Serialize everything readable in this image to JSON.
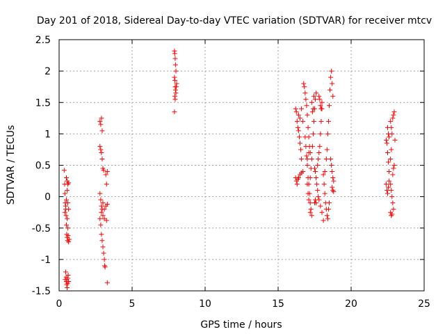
{
  "chart_data": {
    "type": "scatter",
    "title": "Day 201 of 2018, Sidereal Day-to-day VTEC variation (SDTVAR) for receiver mtcv",
    "xlabel": "GPS time / hours",
    "ylabel": "SDTVAR / TECUs",
    "xlim": [
      0,
      25
    ],
    "ylim": [
      -1.5,
      2.5
    ],
    "xticks": [
      0,
      5,
      10,
      15,
      20,
      25
    ],
    "xtick_labels": [
      "0",
      "5",
      "10",
      "15",
      "20",
      "25"
    ],
    "yticks": [
      -1.5,
      -1,
      -0.5,
      0,
      0.5,
      1,
      1.5,
      2,
      2.5
    ],
    "ytick_labels": [
      "-1.5",
      "-1",
      "-0.5",
      "0",
      "0.5",
      "1",
      "1.5",
      "2",
      "2.5"
    ],
    "grid": true,
    "marker": "+",
    "color": "#ff0000",
    "series": [
      {
        "name": "SDTVAR",
        "points": [
          [
            0.35,
            0.42
          ],
          [
            0.38,
            0.2
          ],
          [
            0.4,
            0.05
          ],
          [
            0.42,
            -0.1
          ],
          [
            0.45,
            -0.2
          ],
          [
            0.48,
            -0.3
          ],
          [
            0.5,
            -0.45
          ],
          [
            0.52,
            -0.6
          ],
          [
            0.55,
            -0.65
          ],
          [
            0.58,
            -0.7
          ],
          [
            0.4,
            -0.25
          ],
          [
            0.45,
            -0.15
          ],
          [
            0.5,
            -0.05
          ],
          [
            0.55,
            0.1
          ],
          [
            0.6,
            0.2
          ],
          [
            0.65,
            0.22
          ],
          [
            0.55,
            -0.35
          ],
          [
            0.6,
            -0.5
          ],
          [
            0.62,
            -0.62
          ],
          [
            0.65,
            -0.72
          ],
          [
            0.45,
            -1.2
          ],
          [
            0.48,
            -1.28
          ],
          [
            0.5,
            -1.35
          ],
          [
            0.52,
            -1.4
          ],
          [
            0.55,
            -1.45
          ],
          [
            0.6,
            -1.3
          ],
          [
            0.62,
            -1.25
          ],
          [
            0.58,
            -1.38
          ],
          [
            0.42,
            -1.32
          ],
          [
            0.65,
            -1.35
          ],
          [
            0.5,
            0.3
          ],
          [
            0.55,
            0.25
          ],
          [
            0.6,
            -0.1
          ],
          [
            0.65,
            -0.2
          ],
          [
            0.7,
            -0.68
          ],
          [
            2.8,
            1.2
          ],
          [
            2.85,
            1.15
          ],
          [
            2.9,
            1.25
          ],
          [
            2.95,
            1.05
          ],
          [
            2.8,
            0.8
          ],
          [
            2.85,
            0.75
          ],
          [
            2.9,
            0.7
          ],
          [
            2.95,
            0.6
          ],
          [
            3.0,
            0.45
          ],
          [
            3.05,
            0.42
          ],
          [
            3.2,
            0.35
          ],
          [
            3.25,
            0.2
          ],
          [
            3.3,
            0.4
          ],
          [
            2.8,
            0.05
          ],
          [
            2.85,
            -0.05
          ],
          [
            2.9,
            -0.15
          ],
          [
            2.95,
            -0.2
          ],
          [
            3.0,
            -0.3
          ],
          [
            3.1,
            -0.35
          ],
          [
            3.2,
            -0.15
          ],
          [
            3.3,
            -0.12
          ],
          [
            2.8,
            -0.35
          ],
          [
            2.85,
            -0.45
          ],
          [
            2.9,
            -0.6
          ],
          [
            2.95,
            -0.7
          ],
          [
            3.0,
            -0.8
          ],
          [
            3.05,
            -0.9
          ],
          [
            3.1,
            -1.0
          ],
          [
            3.12,
            -1.1
          ],
          [
            3.15,
            -1.12
          ],
          [
            3.3,
            -1.37
          ],
          [
            2.9,
            -0.25
          ],
          [
            3.0,
            -0.1
          ],
          [
            3.1,
            -0.2
          ],
          [
            3.25,
            -0.38
          ],
          [
            7.9,
            2.32
          ],
          [
            7.92,
            2.28
          ],
          [
            7.95,
            2.2
          ],
          [
            7.97,
            2.1
          ],
          [
            8.0,
            2.0
          ],
          [
            7.9,
            1.9
          ],
          [
            7.93,
            1.85
          ],
          [
            7.95,
            1.75
          ],
          [
            7.97,
            1.7
          ],
          [
            8.0,
            1.65
          ],
          [
            7.92,
            1.6
          ],
          [
            7.95,
            1.55
          ],
          [
            8.02,
            1.75
          ],
          [
            8.05,
            1.8
          ],
          [
            7.9,
            1.35
          ],
          [
            16.2,
            1.4
          ],
          [
            16.25,
            1.35
          ],
          [
            16.3,
            1.2
          ],
          [
            16.35,
            1.1
          ],
          [
            16.4,
            1.05
          ],
          [
            16.45,
            0.95
          ],
          [
            16.5,
            0.85
          ],
          [
            16.55,
            0.75
          ],
          [
            16.6,
            0.6
          ],
          [
            16.2,
            0.3
          ],
          [
            16.25,
            0.25
          ],
          [
            16.3,
            0.2
          ],
          [
            16.35,
            0.28
          ],
          [
            16.4,
            0.3
          ],
          [
            16.5,
            0.35
          ],
          [
            16.6,
            0.38
          ],
          [
            16.7,
            0.4
          ],
          [
            16.75,
            1.8
          ],
          [
            16.8,
            1.75
          ],
          [
            16.85,
            1.65
          ],
          [
            16.9,
            1.55
          ],
          [
            16.95,
            1.45
          ],
          [
            17.0,
            1.3
          ],
          [
            17.05,
            1.1
          ],
          [
            17.1,
            0.95
          ],
          [
            17.15,
            0.8
          ],
          [
            17.2,
            0.7
          ],
          [
            16.85,
            0.95
          ],
          [
            16.9,
            0.8
          ],
          [
            16.95,
            0.65
          ],
          [
            17.0,
            0.5
          ],
          [
            17.05,
            0.3
          ],
          [
            17.1,
            0.2
          ],
          [
            17.15,
            0.05
          ],
          [
            17.2,
            -0.1
          ],
          [
            17.25,
            -0.2
          ],
          [
            17.3,
            -0.3
          ],
          [
            17.0,
            0.2
          ],
          [
            17.05,
            0.05
          ],
          [
            17.1,
            -0.05
          ],
          [
            17.2,
            0.3
          ],
          [
            17.25,
            0.45
          ],
          [
            17.3,
            0.6
          ],
          [
            17.35,
            0.8
          ],
          [
            17.4,
            1.0
          ],
          [
            17.45,
            1.2
          ],
          [
            17.5,
            1.4
          ],
          [
            17.55,
            1.55
          ],
          [
            17.6,
            1.65
          ],
          [
            17.3,
            1.5
          ],
          [
            17.35,
            1.35
          ],
          [
            17.4,
            1.4
          ],
          [
            17.45,
            1.6
          ],
          [
            17.5,
            0.45
          ],
          [
            17.55,
            0.4
          ],
          [
            17.6,
            0.3
          ],
          [
            17.65,
            0.2
          ],
          [
            17.7,
            0.1
          ],
          [
            17.75,
            0.0
          ],
          [
            17.8,
            -0.05
          ],
          [
            17.5,
            -0.1
          ],
          [
            17.55,
            -0.05
          ],
          [
            17.6,
            -0.1
          ],
          [
            17.7,
            0.5
          ],
          [
            17.75,
            0.6
          ],
          [
            17.8,
            0.7
          ],
          [
            17.85,
            0.8
          ],
          [
            17.9,
            1.0
          ],
          [
            17.95,
            1.2
          ],
          [
            18.0,
            1.4
          ],
          [
            17.8,
            1.6
          ],
          [
            17.85,
            1.55
          ],
          [
            17.9,
            1.45
          ],
          [
            17.95,
            1.4
          ],
          [
            18.0,
            1.5
          ],
          [
            18.1,
            0.35
          ],
          [
            18.15,
            0.2
          ],
          [
            18.2,
            0.05
          ],
          [
            18.25,
            -0.1
          ],
          [
            18.3,
            -0.2
          ],
          [
            18.35,
            -0.3
          ],
          [
            18.4,
            -0.35
          ],
          [
            18.45,
            -0.2
          ],
          [
            18.5,
            -0.1
          ],
          [
            18.2,
            0.4
          ],
          [
            18.3,
            0.6
          ],
          [
            18.35,
            0.75
          ],
          [
            18.4,
            1.0
          ],
          [
            18.45,
            1.2
          ],
          [
            18.5,
            1.45
          ],
          [
            18.55,
            1.7
          ],
          [
            18.6,
            1.9
          ],
          [
            18.65,
            2.0
          ],
          [
            18.7,
            1.8
          ],
          [
            18.75,
            1.6
          ],
          [
            18.6,
            0.6
          ],
          [
            18.65,
            0.5
          ],
          [
            18.7,
            0.4
          ],
          [
            18.75,
            0.3
          ],
          [
            18.8,
            0.25
          ],
          [
            18.7,
            0.15
          ],
          [
            18.75,
            0.1
          ],
          [
            18.8,
            0.08
          ],
          [
            16.4,
            1.3
          ],
          [
            16.5,
            1.25
          ],
          [
            16.6,
            1.4
          ],
          [
            16.7,
            1.2
          ],
          [
            17.0,
            0.6
          ],
          [
            17.1,
            0.7
          ],
          [
            17.2,
            -0.25
          ],
          [
            17.9,
            -0.15
          ],
          [
            18.0,
            -0.25
          ],
          [
            18.1,
            -0.38
          ],
          [
            22.4,
            0.9
          ],
          [
            22.45,
            0.85
          ],
          [
            22.5,
            0.7
          ],
          [
            22.55,
            0.55
          ],
          [
            22.6,
            0.4
          ],
          [
            22.4,
            0.2
          ],
          [
            22.45,
            0.1
          ],
          [
            22.5,
            0.05
          ],
          [
            22.55,
            0.15
          ],
          [
            22.6,
            0.25
          ],
          [
            22.5,
            1.1
          ],
          [
            22.55,
            1.0
          ],
          [
            22.6,
            0.95
          ],
          [
            22.7,
            1.2
          ],
          [
            22.75,
            1.1
          ],
          [
            22.8,
            1.0
          ],
          [
            22.85,
            1.25
          ],
          [
            22.9,
            1.3
          ],
          [
            22.95,
            1.35
          ],
          [
            22.7,
            0.2
          ],
          [
            22.75,
            0.1
          ],
          [
            22.8,
            0.0
          ],
          [
            22.85,
            -0.1
          ],
          [
            22.9,
            -0.2
          ],
          [
            22.7,
            -0.25
          ],
          [
            22.75,
            -0.3
          ],
          [
            22.8,
            -0.28
          ],
          [
            22.85,
            0.35
          ],
          [
            22.9,
            0.45
          ],
          [
            22.95,
            0.5
          ],
          [
            23.0,
            0.9
          ],
          [
            22.7,
            0.6
          ],
          [
            22.75,
            0.75
          ]
        ]
      }
    ]
  }
}
